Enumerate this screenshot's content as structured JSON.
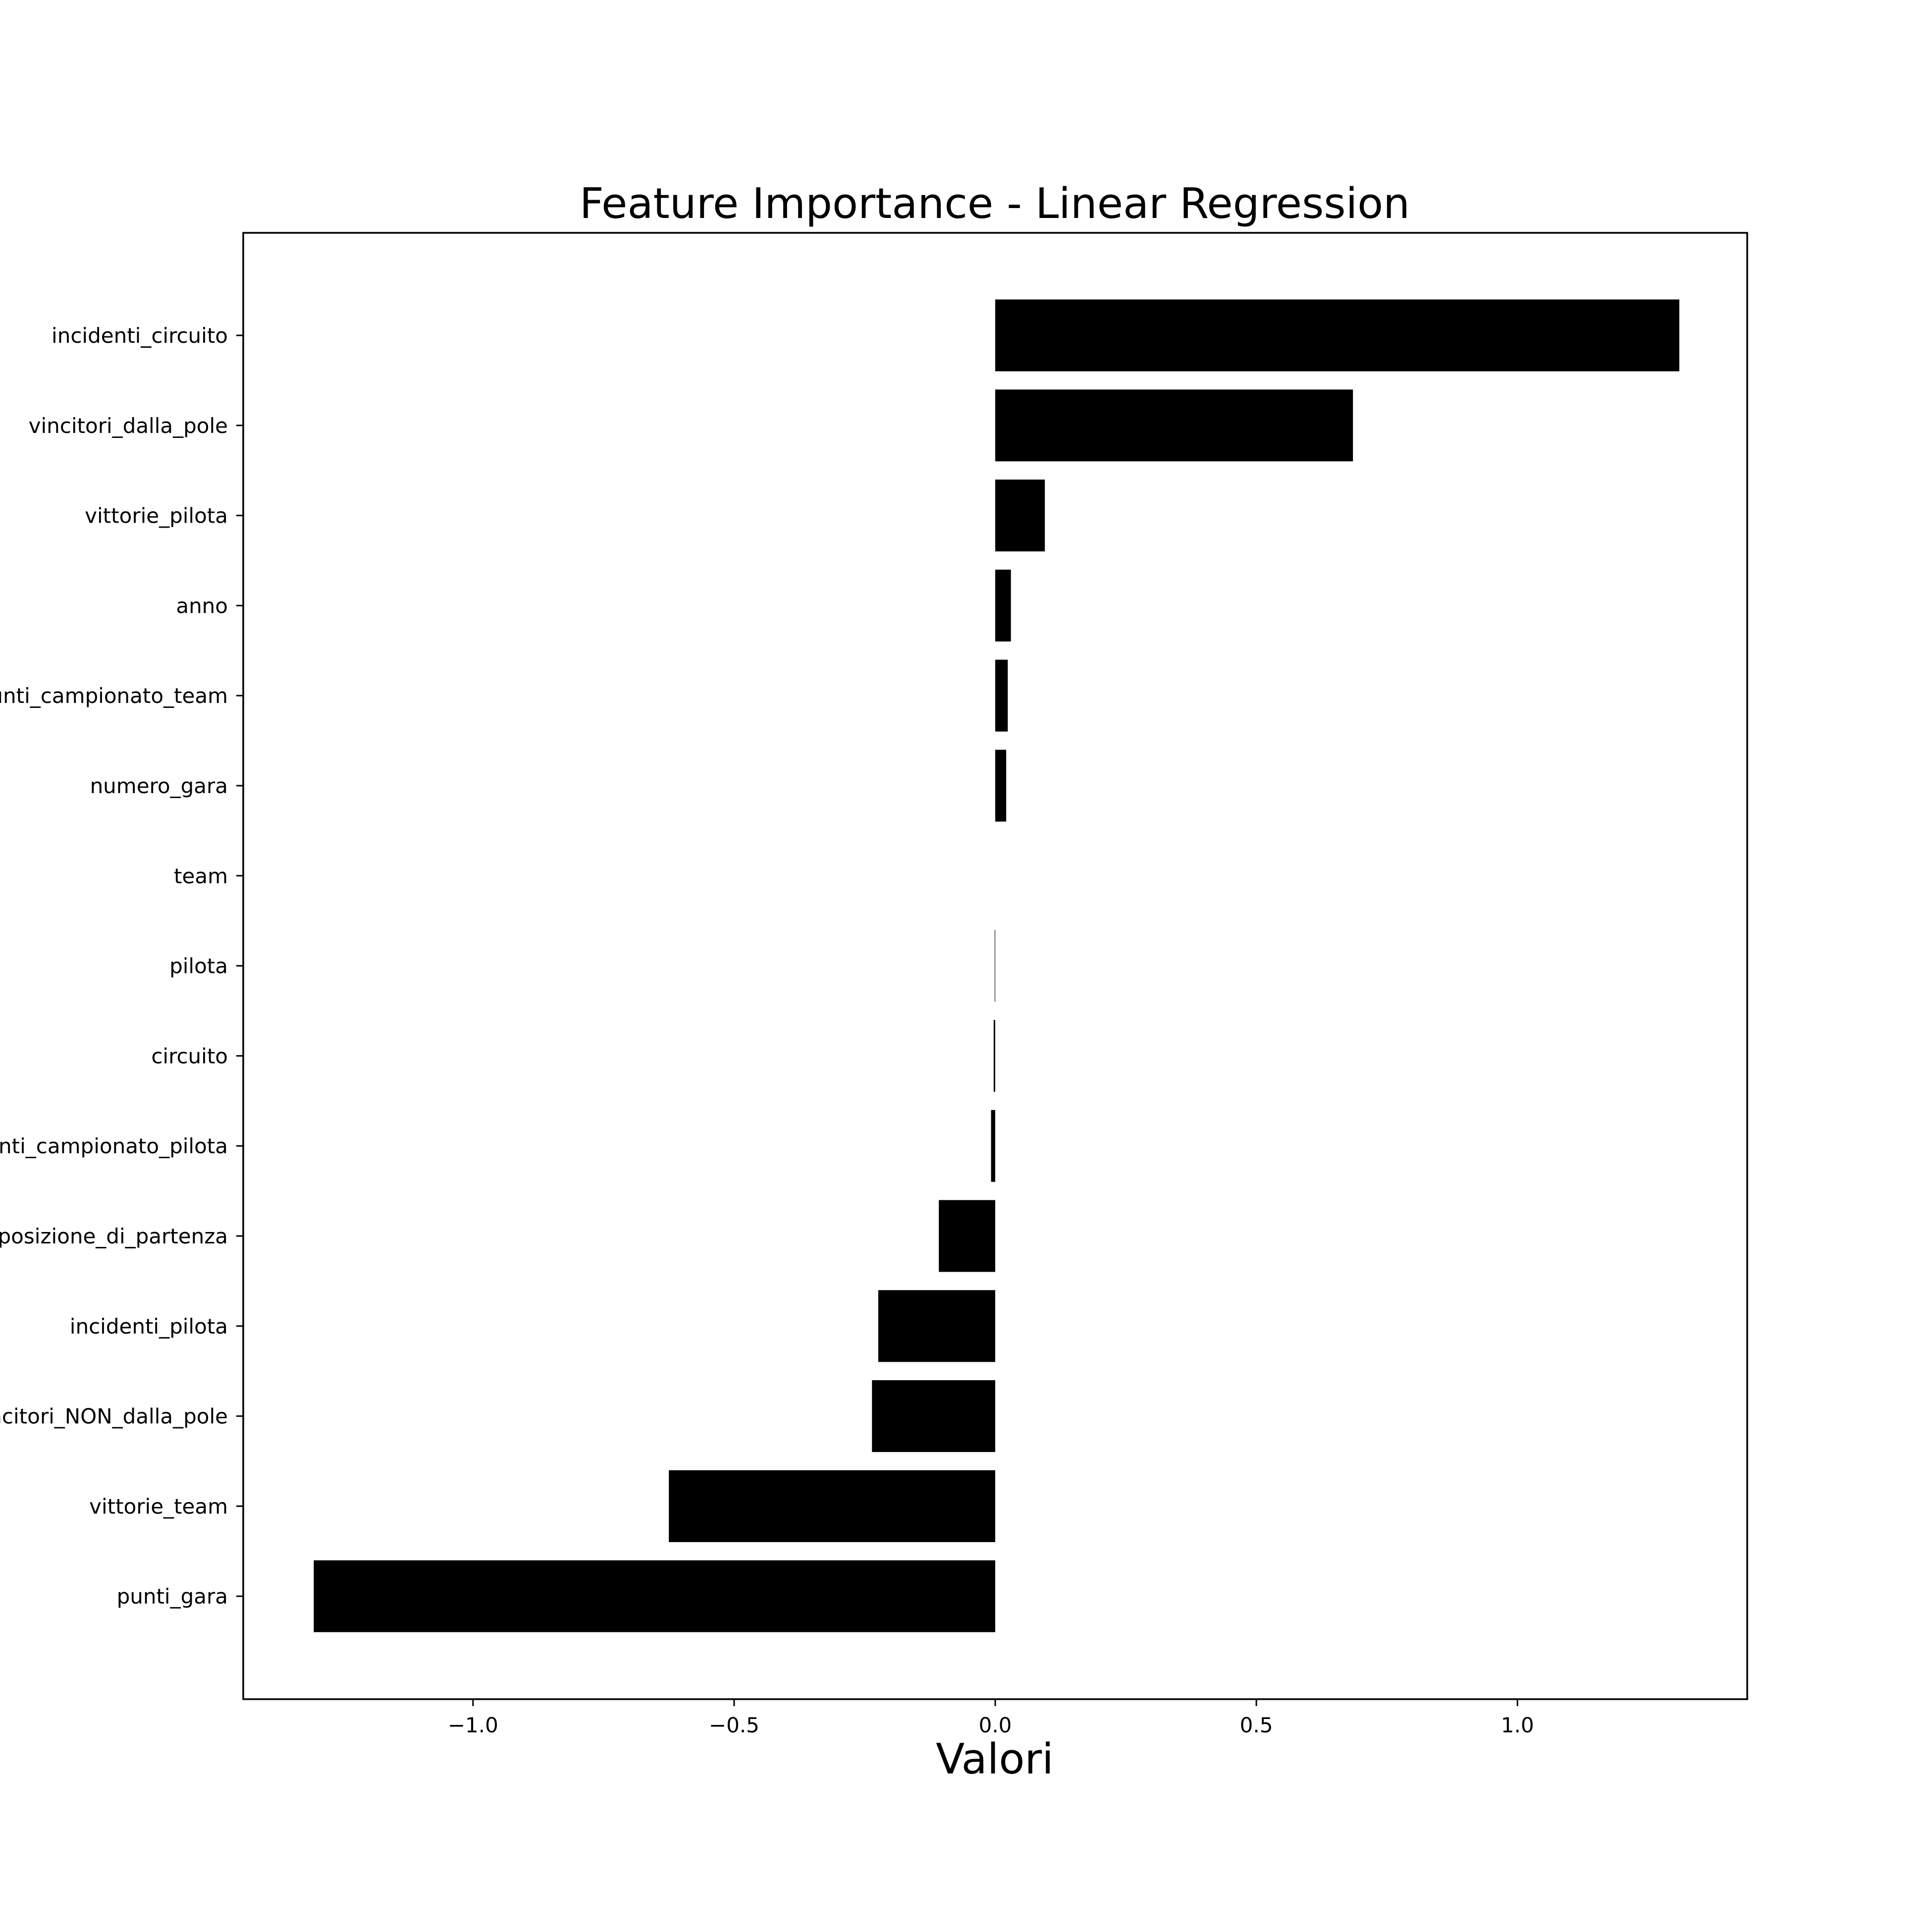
{
  "chart_data": {
    "type": "bar",
    "orientation": "horizontal",
    "title": "Feature Importance - Linear Regression",
    "xlabel": "Valori",
    "ylabel": "",
    "xlim": [
      -1.44,
      1.44
    ],
    "xticks": [
      -1.0,
      -0.5,
      0.0,
      0.5,
      1.0
    ],
    "xtick_labels": [
      "−1.0",
      "−0.5",
      "0.0",
      "0.5",
      "1.0"
    ],
    "grid": false,
    "bar_color": "#000000",
    "categories": [
      "incidenti_circuito",
      "vincitori_dalla_pole",
      "vittorie_pilota",
      "anno",
      "punti_campionato_team",
      "numero_gara",
      "team",
      "pilota",
      "circuito",
      "punti_campionato_pilota",
      "posizione_di_partenza",
      "incidenti_pilota",
      "vincitori_NON_dalla_pole",
      "vittorie_team",
      "punti_gara"
    ],
    "values": [
      1.31,
      0.685,
      0.095,
      0.03,
      0.024,
      0.021,
      0.0,
      -0.001,
      -0.003,
      -0.008,
      -0.108,
      -0.224,
      -0.236,
      -0.625,
      -1.305
    ]
  }
}
